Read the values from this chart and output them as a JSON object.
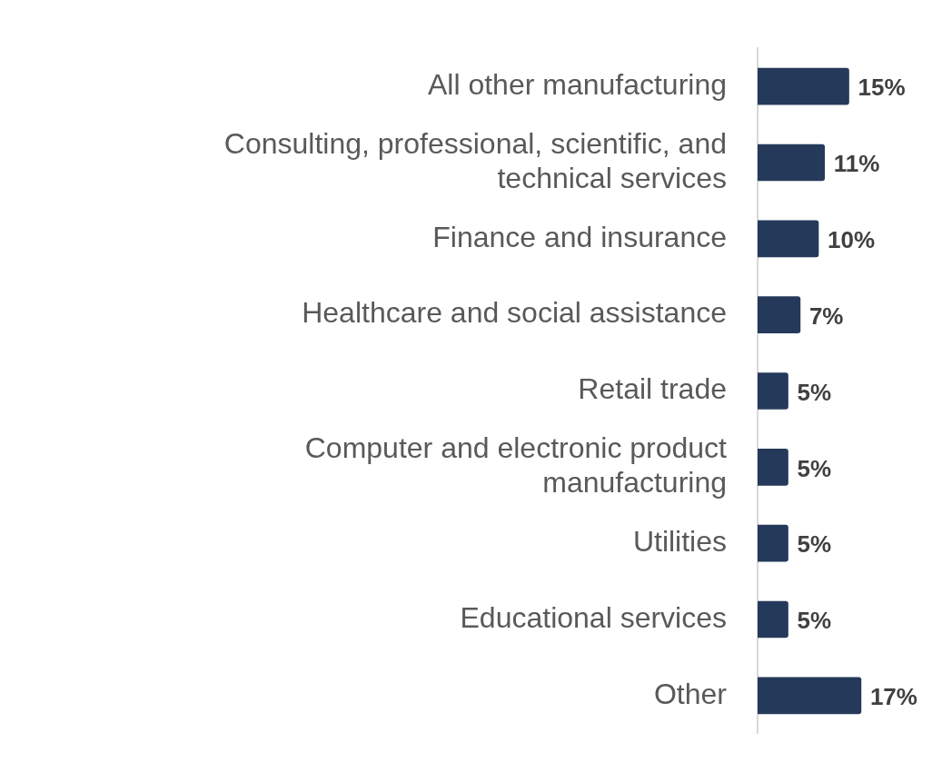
{
  "chart_data": {
    "type": "bar",
    "orientation": "horizontal",
    "categories": [
      "All other manufacturing",
      "Consulting, professional, scientific, and technical services",
      "Finance and insurance",
      "Healthcare and social assistance",
      "Retail trade",
      "Computer and electronic product manufacturing",
      "Utilities",
      "Educational services",
      "Other"
    ],
    "values": [
      15,
      11,
      10,
      7,
      5,
      5,
      5,
      5,
      17
    ],
    "value_labels": [
      "15%",
      "11%",
      "10%",
      "7%",
      "5%",
      "5%",
      "5%",
      "5%",
      "17%"
    ],
    "color": "#253a5a",
    "grid": false,
    "legend": false,
    "tick_labels": "y"
  }
}
